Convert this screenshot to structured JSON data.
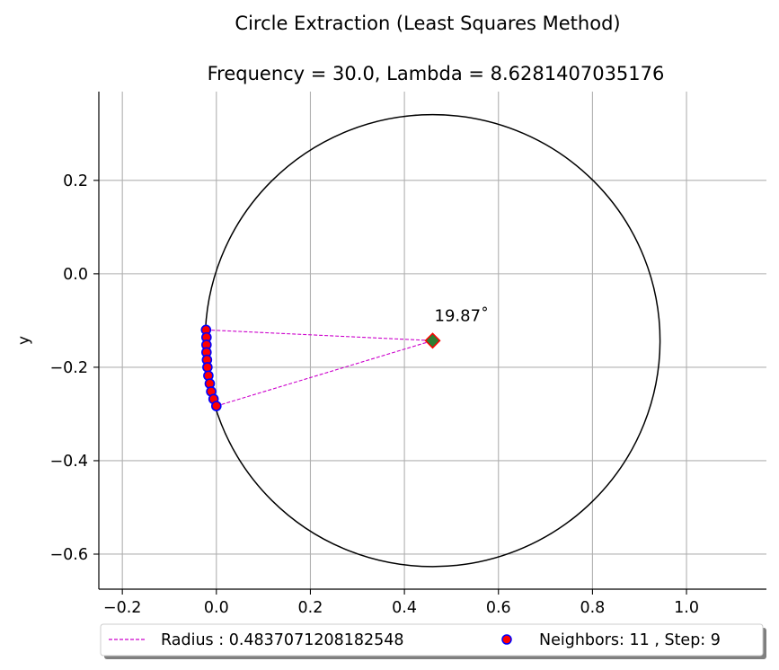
{
  "chart_data": {
    "type": "scatter",
    "title": "Circle Extraction (Least Squares Method)",
    "subtitle": "Frequency = 30.0, Lambda = 8.6281407035176",
    "xlabel": "",
    "ylabel": "y",
    "xlim": [
      -0.25,
      1.17
    ],
    "ylim": [
      -0.675,
      0.39
    ],
    "xticks": [
      -0.2,
      0.0,
      0.2,
      0.4,
      0.6,
      0.8,
      1.0
    ],
    "xtick_labels": [
      "−0.2",
      "0.0",
      "0.2",
      "0.4",
      "0.6",
      "0.8",
      "1.0"
    ],
    "yticks": [
      0.2,
      0.0,
      -0.2,
      -0.4,
      -0.6
    ],
    "ytick_labels": [
      "0.2",
      "0.0",
      "−0.2",
      "−0.4",
      "−0.6"
    ],
    "grid": true,
    "legend_position": "bottom",
    "circle": {
      "center": [
        0.46,
        -0.143
      ],
      "radius": 0.4837071208182548,
      "color": "#000000"
    },
    "center_marker": {
      "x": 0.46,
      "y": -0.143,
      "face_color": "#2e7d32",
      "edge_color": "#ff0000"
    },
    "radius_lines": {
      "color": "#cc00cc",
      "endpoints": [
        [
          -0.022,
          -0.12
        ],
        [
          0.0,
          -0.283
        ]
      ]
    },
    "angle_annotation": {
      "text": "19.87˚",
      "x": 0.46,
      "y": -0.09
    },
    "points": {
      "face_color": "#ff0000",
      "edge_color": "#0000ff",
      "x": [
        -0.022,
        -0.021,
        -0.021,
        -0.021,
        -0.02,
        -0.019,
        -0.017,
        -0.014,
        -0.011,
        -0.006,
        0.0
      ],
      "y": [
        -0.12,
        -0.136,
        -0.152,
        -0.168,
        -0.184,
        -0.2,
        -0.218,
        -0.235,
        -0.252,
        -0.268,
        -0.283
      ]
    },
    "series": [
      {
        "name": "Radius : 0.4837071208182548",
        "color": "#cc00cc",
        "style": "dashed-line"
      },
      {
        "name": "Neighbors: 11 , Step: 9",
        "color": "#ff0000",
        "style": "marker"
      }
    ]
  }
}
